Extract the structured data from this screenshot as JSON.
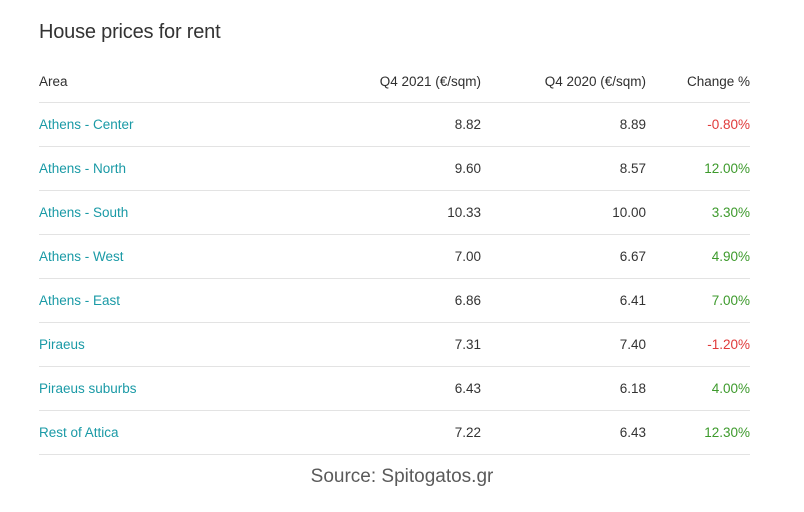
{
  "title": "House prices for rent",
  "table": {
    "headers": {
      "area": "Area",
      "q4_2021": "Q4 2021 (€/sqm)",
      "q4_2020": "Q4 2020 (€/sqm)",
      "change": "Change %"
    },
    "rows": [
      {
        "area": "Athens - Center",
        "q4_2021": "8.82",
        "q4_2020": "8.89",
        "change": "-0.80%",
        "trend": "neg"
      },
      {
        "area": "Athens - North",
        "q4_2021": "9.60",
        "q4_2020": "8.57",
        "change": "12.00%",
        "trend": "pos"
      },
      {
        "area": "Athens - South",
        "q4_2021": "10.33",
        "q4_2020": "10.00",
        "change": "3.30%",
        "trend": "pos"
      },
      {
        "area": "Athens - West",
        "q4_2021": "7.00",
        "q4_2020": "6.67",
        "change": "4.90%",
        "trend": "pos"
      },
      {
        "area": "Athens - East",
        "q4_2021": "6.86",
        "q4_2020": "6.41",
        "change": "7.00%",
        "trend": "pos"
      },
      {
        "area": "Piraeus",
        "q4_2021": "7.31",
        "q4_2020": "7.40",
        "change": "-1.20%",
        "trend": "neg"
      },
      {
        "area": "Piraeus suburbs",
        "q4_2021": "6.43",
        "q4_2020": "6.18",
        "change": "4.00%",
        "trend": "pos"
      },
      {
        "area": "Rest of Attica",
        "q4_2021": "7.22",
        "q4_2020": "6.43",
        "change": "12.30%",
        "trend": "pos"
      }
    ]
  },
  "source": "Source: Spitogatos.gr",
  "colors": {
    "area_link": "#1a9aa6",
    "negative": "#e03a3a",
    "positive": "#3d9a2c"
  }
}
